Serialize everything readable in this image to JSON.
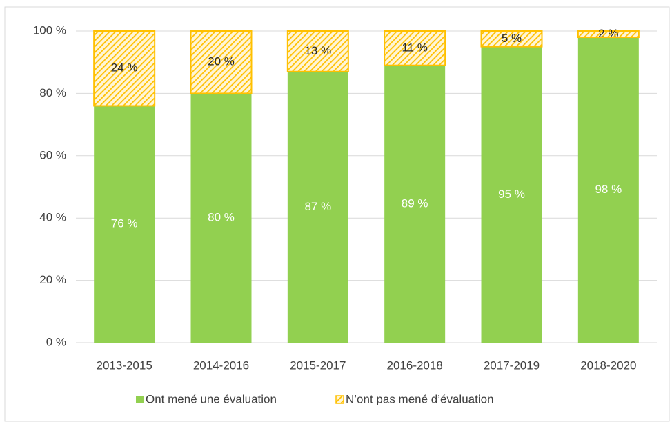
{
  "chart_data": {
    "type": "bar",
    "stacked": true,
    "categories": [
      "2013-2015",
      "2014-2016",
      "2015-2017",
      "2016-2018",
      "2017-2019",
      "2018-2020"
    ],
    "series": [
      {
        "name": "Ont mené une évaluation",
        "color": "#92d050",
        "values": [
          76,
          80,
          87,
          89,
          95,
          98
        ],
        "value_labels": [
          "76 %",
          "80 %",
          "87 %",
          "89 %",
          "95 %",
          "98 %"
        ]
      },
      {
        "name": "N’ont pas mené d’évaluation",
        "color": "#ffc000",
        "hatch": true,
        "values": [
          24,
          20,
          13,
          11,
          5,
          2
        ],
        "value_labels": [
          "24 %",
          "20 %",
          "13 %",
          "11 %",
          "5 %",
          "2 %"
        ]
      }
    ],
    "ylim": [
      0,
      100
    ],
    "yticks": [
      {
        "value": 0,
        "label": "0 %"
      },
      {
        "value": 20,
        "label": "20 %"
      },
      {
        "value": 40,
        "label": "40 %"
      },
      {
        "value": 60,
        "label": "60 %"
      },
      {
        "value": 80,
        "label": "80 %"
      },
      {
        "value": 100,
        "label": "100 %"
      }
    ],
    "grid": true,
    "legend": "bottom"
  }
}
